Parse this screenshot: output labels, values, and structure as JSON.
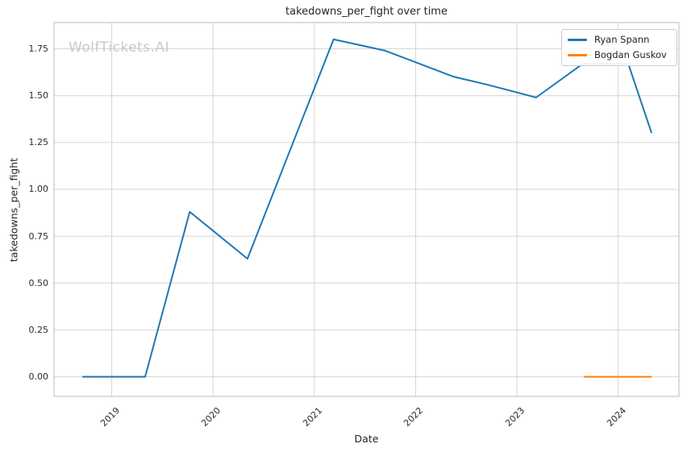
{
  "chart_data": {
    "type": "line",
    "title": "takedowns_per_fight over time",
    "xlabel": "Date",
    "ylabel": "takedowns_per_fight",
    "watermark": "WolfTickets.AI",
    "grid": true,
    "legend_position": "upper right",
    "xlim": [
      2018.43,
      2024.6
    ],
    "ylim": [
      -0.105,
      1.89
    ],
    "x_ticks": [
      2019,
      2020,
      2021,
      2022,
      2023,
      2024
    ],
    "x_tick_labels": [
      "2019",
      "2020",
      "2021",
      "2022",
      "2023",
      "2024"
    ],
    "y_ticks": [
      0.0,
      0.25,
      0.5,
      0.75,
      1.0,
      1.25,
      1.5,
      1.75
    ],
    "y_tick_labels": [
      "0.00",
      "0.25",
      "0.50",
      "0.75",
      "1.00",
      "1.25",
      "1.50",
      "1.75"
    ],
    "colors": {
      "grid": "#d4d4d4",
      "spine": "#c6c6c6",
      "watermark": "#c9c9c9"
    },
    "series": [
      {
        "name": "Ryan Spann",
        "color": "#1f77b4",
        "x": [
          2018.71,
          2019.33,
          2019.77,
          2020.34,
          2021.19,
          2021.7,
          2022.38,
          2022.7,
          2023.19,
          2023.65,
          2024.1,
          2024.33
        ],
        "y": [
          0.0,
          0.0,
          0.88,
          0.63,
          1.8,
          1.74,
          1.6,
          1.56,
          1.49,
          1.67,
          1.67,
          1.3
        ]
      },
      {
        "name": "Bogdan Guskov",
        "color": "#ff7f0e",
        "x": [
          2023.66,
          2024.33
        ],
        "y": [
          0.0,
          0.0
        ]
      }
    ]
  }
}
